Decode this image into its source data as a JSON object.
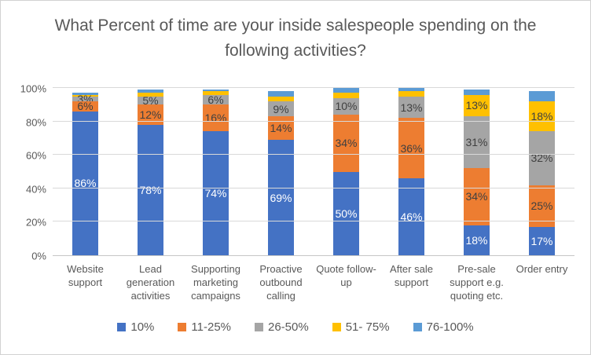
{
  "chart_data": {
    "type": "bar",
    "variant": "stacked-vertical",
    "title": "What Percent of time are your inside salespeople spending on the following activities?",
    "categories": [
      "Website support",
      "Lead generation activities",
      "Supporting marketing campaigns",
      "Proactive outbound calling",
      "Quote follow-up",
      "After sale support",
      "Pre-sale support e.g. quoting etc.",
      "Order entry"
    ],
    "series": [
      {
        "name": "10%",
        "color": "#4472c4",
        "label_color": "#ffffff",
        "values": [
          86,
          78,
          74,
          69,
          50,
          46,
          18,
          17
        ],
        "labels": [
          "86%",
          "78%",
          "74%",
          "69%",
          "50%",
          "46%",
          "18%",
          "17%"
        ]
      },
      {
        "name": "11-25%",
        "color": "#ed7d31",
        "label_color": "#404040",
        "values": [
          6,
          12,
          16,
          14,
          34,
          36,
          34,
          25
        ],
        "labels": [
          "6%",
          "12%",
          "16%",
          "14%",
          "34%",
          "36%",
          "34%",
          "25%"
        ]
      },
      {
        "name": "26-50%",
        "color": "#a5a5a5",
        "label_color": "#404040",
        "values": [
          3,
          5,
          6,
          9,
          10,
          13,
          31,
          32
        ],
        "labels": [
          "3%",
          "5%",
          "6%",
          "9%",
          "10%",
          "13%",
          "31%",
          "32%"
        ]
      },
      {
        "name": "51- 75%",
        "color": "#ffc000",
        "label_color": "#404040",
        "values": [
          1,
          2,
          2,
          3,
          3,
          3,
          13,
          18
        ],
        "labels": [
          null,
          null,
          null,
          null,
          null,
          null,
          "13%",
          "18%"
        ]
      },
      {
        "name": "76-100%",
        "color": "#5b9bd5",
        "label_color": "#404040",
        "values": [
          1,
          2,
          1,
          3,
          3,
          2,
          3,
          6
        ],
        "labels": [
          null,
          null,
          null,
          null,
          null,
          null,
          null,
          null
        ]
      }
    ],
    "yticks": [
      0,
      20,
      40,
      60,
      80,
      100
    ],
    "ytick_labels": [
      "0%",
      "20%",
      "40%",
      "60%",
      "80%",
      "100%"
    ],
    "ylim": [
      0,
      100
    ],
    "grid": "horizontal",
    "legend_position": "bottom",
    "colors": {
      "title_text": "#595959",
      "axis_text": "#595959",
      "segment_label_dark": "#404040",
      "segment_label_light": "#ffffff",
      "gridline": "#d9d9d9",
      "axis_line": "#c6c6c6",
      "background": "#ffffff"
    }
  }
}
